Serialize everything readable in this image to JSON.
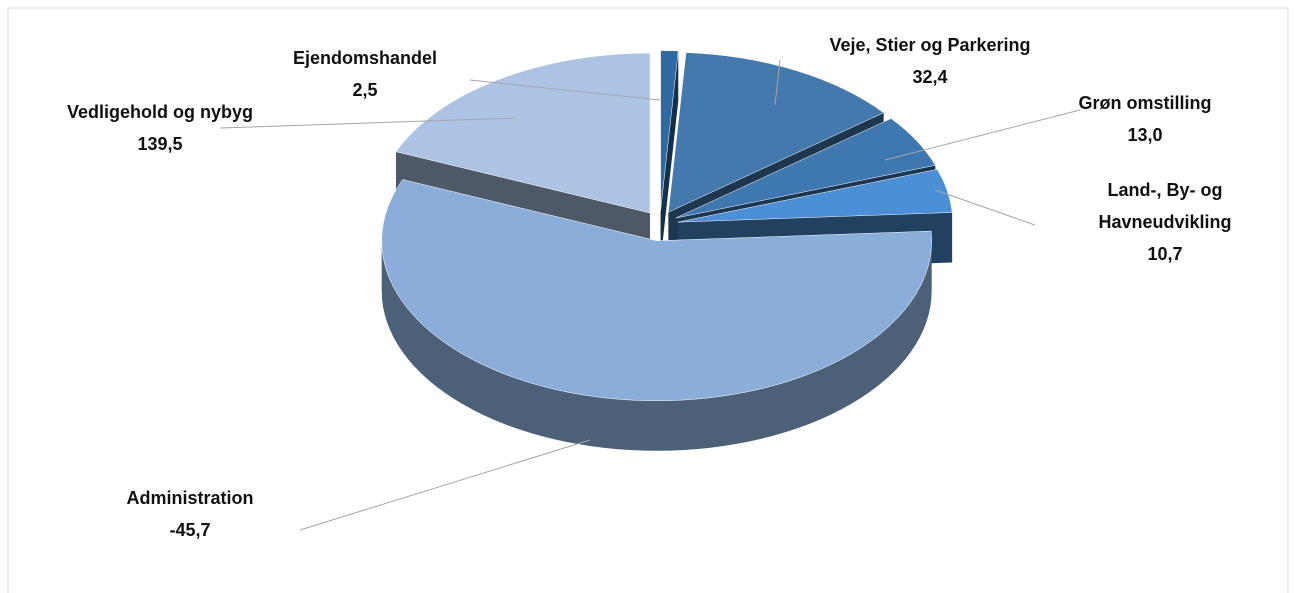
{
  "chart_data": {
    "type": "pie",
    "categories": [
      "Ejendomshandel",
      "Veje, Stier og Parkering",
      "Grøn omstilling",
      "Land-, By- og Havneudvikling",
      "Vedligehold og nybyg",
      "Administration"
    ],
    "values": [
      2.5,
      32.4,
      13.0,
      10.7,
      139.5,
      -45.7
    ],
    "value_labels": [
      "2,5",
      "32,4",
      "13,0",
      "10,7",
      "139,5",
      "-45,7"
    ],
    "colors": [
      "#2f6aa3",
      "#4379ad",
      "#3f77b1",
      "#4b8fd6",
      "#8aaed9",
      "#adc3e3"
    ]
  }
}
